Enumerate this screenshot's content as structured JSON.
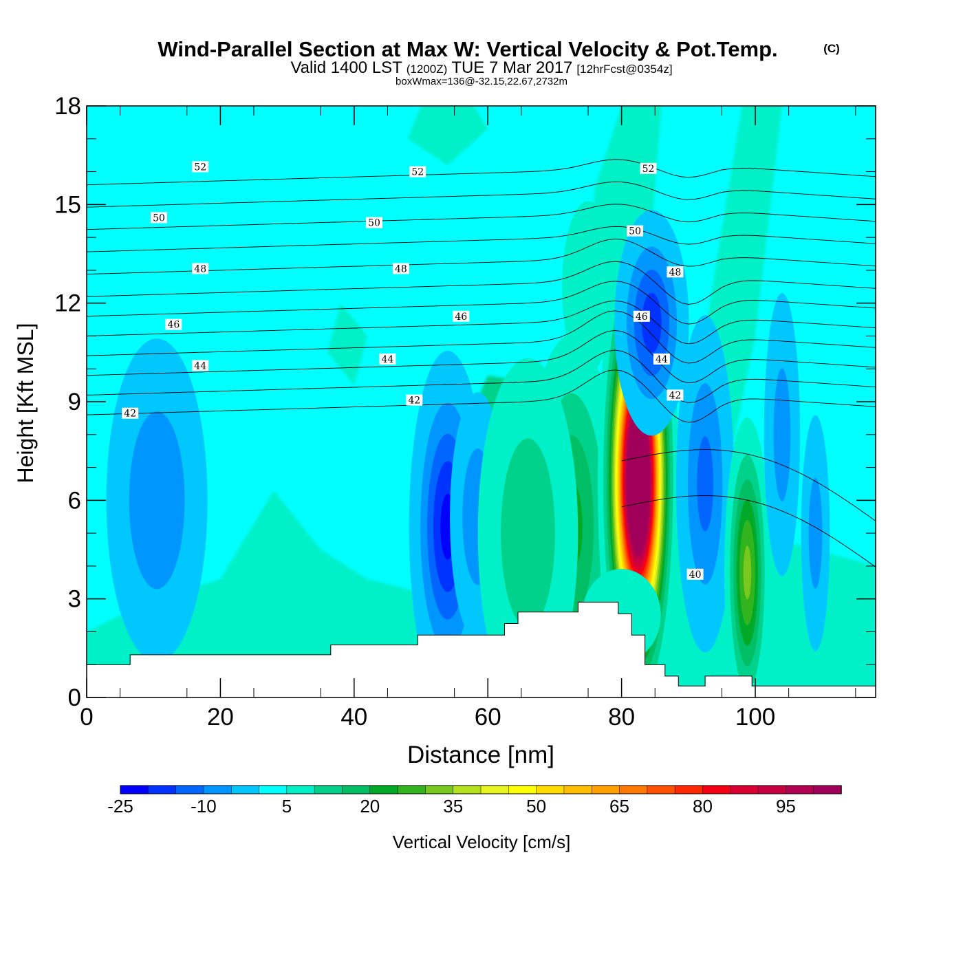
{
  "title": {
    "main": "Wind-Parallel Section at Max W: Vertical Velocity & Pot.Temp.",
    "copyright": "(C)",
    "valid_prefix": "Valid 1400 LST",
    "valid_z": "(1200Z)",
    "valid_date": "TUE 7 Mar 2017",
    "forecast": "[12hrFcst@0354z]",
    "box_info": "boxWmax=136@-32.15,22.67,2732m"
  },
  "chart_data": {
    "type": "contour-section",
    "xlabel": "Distance [nm]",
    "ylabel": "Height [Kft MSL]",
    "xlim": [
      0,
      118
    ],
    "ylim": [
      0,
      18
    ],
    "x_ticks": [
      "0",
      "20",
      "40",
      "60",
      "80",
      "100"
    ],
    "x_tick_values": [
      0,
      20,
      40,
      60,
      80,
      100
    ],
    "y_ticks": [
      "0",
      "3",
      "6",
      "9",
      "12",
      "15",
      "18"
    ],
    "y_tick_values": [
      0,
      3,
      6,
      9,
      12,
      15,
      18
    ],
    "theta_levels": [
      40,
      41,
      42,
      43,
      44,
      45,
      46,
      47,
      48,
      49,
      50,
      51,
      52,
      53
    ],
    "theta_labels": [
      {
        "text": "52",
        "x": 17,
        "y": 16.15
      },
      {
        "text": "52",
        "x": 49.5,
        "y": 16.0
      },
      {
        "text": "52",
        "x": 84,
        "y": 16.1
      },
      {
        "text": "50",
        "x": 10.8,
        "y": 14.6
      },
      {
        "text": "50",
        "x": 43,
        "y": 14.45
      },
      {
        "text": "50",
        "x": 82,
        "y": 14.2
      },
      {
        "text": "48",
        "x": 17,
        "y": 13.05
      },
      {
        "text": "48",
        "x": 47,
        "y": 13.05
      },
      {
        "text": "48",
        "x": 88,
        "y": 12.95
      },
      {
        "text": "46",
        "x": 13,
        "y": 11.35
      },
      {
        "text": "46",
        "x": 56,
        "y": 11.6
      },
      {
        "text": "46",
        "x": 83,
        "y": 11.6
      },
      {
        "text": "44",
        "x": 17,
        "y": 10.1
      },
      {
        "text": "44",
        "x": 45,
        "y": 10.3
      },
      {
        "text": "44",
        "x": 86,
        "y": 10.3
      },
      {
        "text": "42",
        "x": 6.5,
        "y": 8.65
      },
      {
        "text": "42",
        "x": 49,
        "y": 9.05
      },
      {
        "text": "42",
        "x": 88,
        "y": 9.2
      },
      {
        "text": "40",
        "x": 91,
        "y": 3.75
      }
    ],
    "w_cells": [
      {
        "x": 10.5,
        "y": 6.0,
        "sx": 4,
        "sy": 2.6,
        "w": -10
      },
      {
        "x": 54,
        "y": 5.2,
        "sx": 2.6,
        "sy": 2.4,
        "w": -22
      },
      {
        "x": 58.5,
        "y": 5.5,
        "sx": 2.2,
        "sy": 2.0,
        "w": -10
      },
      {
        "x": 72.5,
        "y": 5.2,
        "sx": 3.6,
        "sy": 3.0,
        "w": 22
      },
      {
        "x": 66,
        "y": 5.0,
        "sx": 4.5,
        "sy": 3.2,
        "w": 14
      },
      {
        "x": 82.5,
        "y": 6.6,
        "sx": 2.2,
        "sy": 2.8,
        "w": 136
      },
      {
        "x": 84.5,
        "y": 11.4,
        "sx": 2.6,
        "sy": 1.6,
        "w": -18
      },
      {
        "x": 92.5,
        "y": 6.5,
        "sx": 2.2,
        "sy": 2.6,
        "w": -12
      },
      {
        "x": 98.8,
        "y": 3.8,
        "sx": 1.6,
        "sy": 2.2,
        "w": 32
      },
      {
        "x": 104,
        "y": 8.0,
        "sx": 1.5,
        "sy": 2.4,
        "w": -8
      },
      {
        "x": 109,
        "y": 5.0,
        "sx": 1.2,
        "sy": 2.0,
        "w": -8
      },
      {
        "x": 75,
        "y": 12.5,
        "sx": 3.0,
        "sy": 2.0,
        "w": 9
      },
      {
        "x": 96.5,
        "y": 14.5,
        "sx": 2.4,
        "sy": 3.5,
        "w": 5
      },
      {
        "x": 33,
        "y": 3.2,
        "sx": 10,
        "sy": 1.8,
        "w": 4
      },
      {
        "x": 80,
        "y": 2.5,
        "sx": 5,
        "sy": 1.2,
        "w": 8
      }
    ],
    "terrain": [
      [
        0,
        1.0
      ],
      [
        6.5,
        1.0
      ],
      [
        6.5,
        1.3
      ],
      [
        36.5,
        1.3
      ],
      [
        36.5,
        1.6
      ],
      [
        49.5,
        1.6
      ],
      [
        49.5,
        1.9
      ],
      [
        62.5,
        1.9
      ],
      [
        62.5,
        2.25
      ],
      [
        64.5,
        2.25
      ],
      [
        64.5,
        2.6
      ],
      [
        73.5,
        2.6
      ],
      [
        73.5,
        2.9
      ],
      [
        79.5,
        2.9
      ],
      [
        79.5,
        2.55
      ],
      [
        81.5,
        2.55
      ],
      [
        81.5,
        1.9
      ],
      [
        83.5,
        1.9
      ],
      [
        83.5,
        1.0
      ],
      [
        86.5,
        1.0
      ],
      [
        86.5,
        0.65
      ],
      [
        88.5,
        0.65
      ],
      [
        88.5,
        0.35
      ],
      [
        92.5,
        0.35
      ],
      [
        92.5,
        0.65
      ],
      [
        99.5,
        0.65
      ],
      [
        99.5,
        0.35
      ],
      [
        118,
        0.35
      ]
    ],
    "colorbar": {
      "label": "Vertical Velocity [cm/s]",
      "tick_labels": [
        "-25",
        "-10",
        "5",
        "20",
        "35",
        "50",
        "65",
        "80",
        "95"
      ],
      "tick_values": [
        -25,
        -10,
        5,
        20,
        35,
        50,
        65,
        80,
        95
      ],
      "min": -25,
      "max": 105,
      "step": 5,
      "colors": [
        "#0000ff",
        "#0033ff",
        "#0066ff",
        "#0096ff",
        "#00c8ff",
        "#00ffff",
        "#00f0c8",
        "#00d28c",
        "#00be64",
        "#00aa28",
        "#32b41e",
        "#78c81e",
        "#b4e11e",
        "#e6f51e",
        "#ffff00",
        "#ffdc00",
        "#ffbe00",
        "#ffa000",
        "#ff7800",
        "#ff5000",
        "#ff2800",
        "#f50014",
        "#dc0032",
        "#c80041",
        "#b40050",
        "#a0005a"
      ]
    }
  }
}
